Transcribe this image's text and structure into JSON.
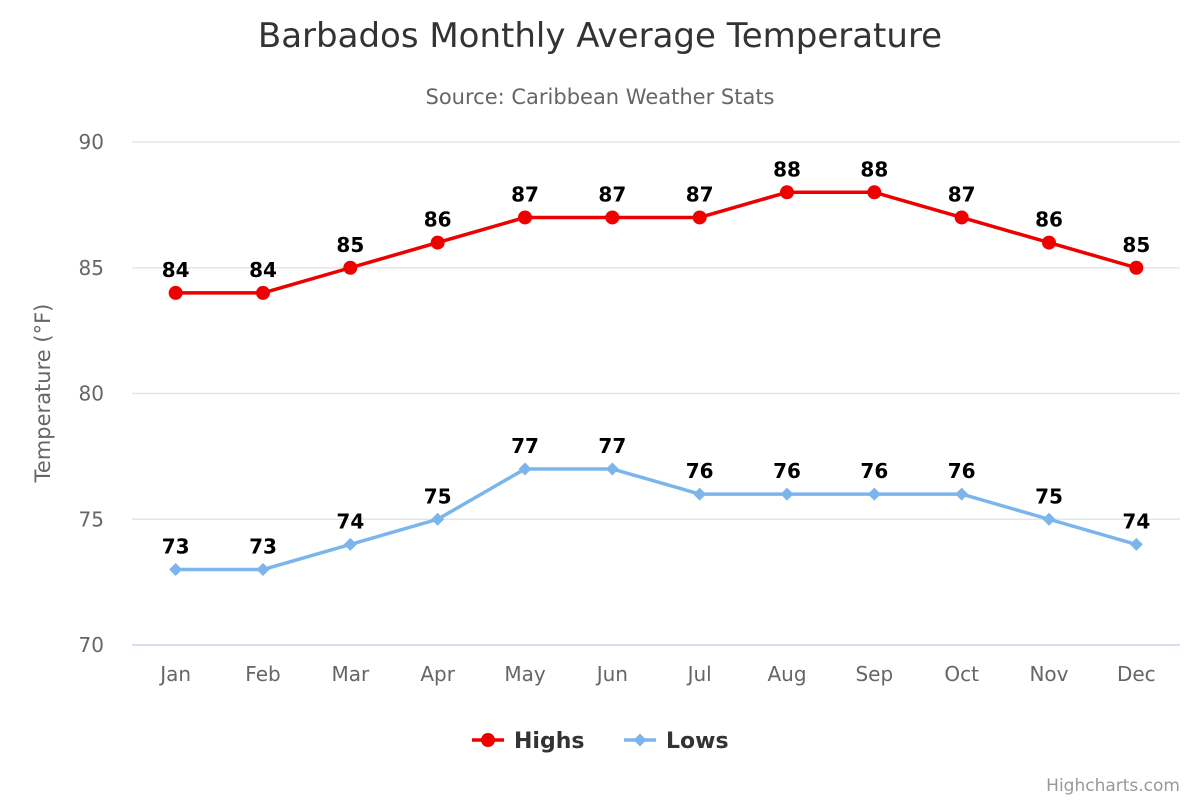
{
  "chart_data": {
    "type": "line",
    "title": "Barbados Monthly Average Temperature",
    "subtitle": "Source: Caribbean Weather Stats",
    "xlabel": "",
    "ylabel": "Temperature (°F)",
    "categories": [
      "Jan",
      "Feb",
      "Mar",
      "Apr",
      "May",
      "Jun",
      "Jul",
      "Aug",
      "Sep",
      "Oct",
      "Nov",
      "Dec"
    ],
    "ylim": [
      70,
      90
    ],
    "yticks": [
      70,
      75,
      80,
      85,
      90
    ],
    "grid": true,
    "legend_position": "bottom-center",
    "series": [
      {
        "name": "Highs",
        "color": "#ee0000",
        "marker": "circle",
        "values": [
          84,
          84,
          85,
          86,
          87,
          87,
          87,
          88,
          88,
          87,
          86,
          85
        ]
      },
      {
        "name": "Lows",
        "color": "#7cb5ec",
        "marker": "diamond",
        "values": [
          73,
          73,
          74,
          75,
          77,
          77,
          76,
          76,
          76,
          76,
          75,
          74
        ]
      }
    ]
  },
  "credit": "Highcharts.com"
}
